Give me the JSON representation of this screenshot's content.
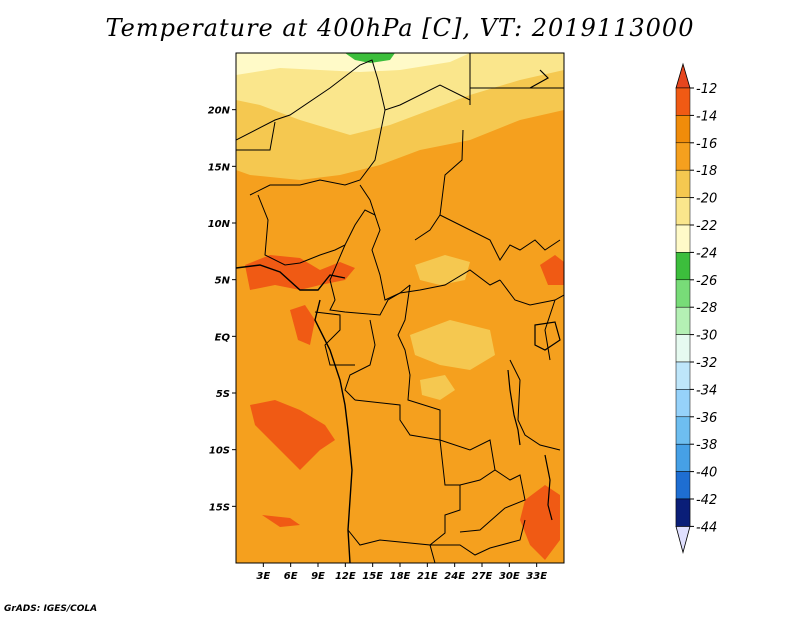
{
  "title": "Temperature at 400hPa [C], VT: 2019113000",
  "credit": "GrADS: IGES/COLA",
  "map": {
    "lon_range": [
      0,
      36
    ],
    "lat_range": [
      -20,
      25
    ],
    "lat_ticks": [
      {
        "value": 20,
        "label": "20N"
      },
      {
        "value": 15,
        "label": "15N"
      },
      {
        "value": 10,
        "label": "10N"
      },
      {
        "value": 5,
        "label": "5N"
      },
      {
        "value": 0,
        "label": "EQ"
      },
      {
        "value": -5,
        "label": "5S"
      },
      {
        "value": -10,
        "label": "10S"
      },
      {
        "value": -15,
        "label": "15S"
      }
    ],
    "lon_ticks": [
      {
        "value": 3,
        "label": "3E"
      },
      {
        "value": 6,
        "label": "6E"
      },
      {
        "value": 9,
        "label": "9E"
      },
      {
        "value": 12,
        "label": "12E"
      },
      {
        "value": 15,
        "label": "15E"
      },
      {
        "value": 18,
        "label": "18E"
      },
      {
        "value": 21,
        "label": "21E"
      },
      {
        "value": 24,
        "label": "24E"
      },
      {
        "value": 27,
        "label": "27E"
      },
      {
        "value": 30,
        "label": "30E"
      },
      {
        "value": 33,
        "label": "33E"
      }
    ]
  },
  "colorbar": {
    "levels": [
      "-12",
      "-14",
      "-16",
      "-18",
      "-20",
      "-22",
      "-24",
      "-26",
      "-28",
      "-30",
      "-32",
      "-34",
      "-36",
      "-38",
      "-40",
      "-42",
      "-44"
    ],
    "colors": [
      "#f05a14",
      "#f08c0a",
      "#f5a01e",
      "#f5c850",
      "#fae68c",
      "#fffac8",
      "#3cbe3c",
      "#78dc78",
      "#b4f0b4",
      "#e6faf0",
      "#bee6fa",
      "#96d2fa",
      "#6ebef0",
      "#46a0e6",
      "#1e6ed2",
      "#1450b4",
      "#0a1e78"
    ],
    "top_arrow_color": "#e6461e",
    "bottom_arrow_color": "#e0e0ff"
  }
}
